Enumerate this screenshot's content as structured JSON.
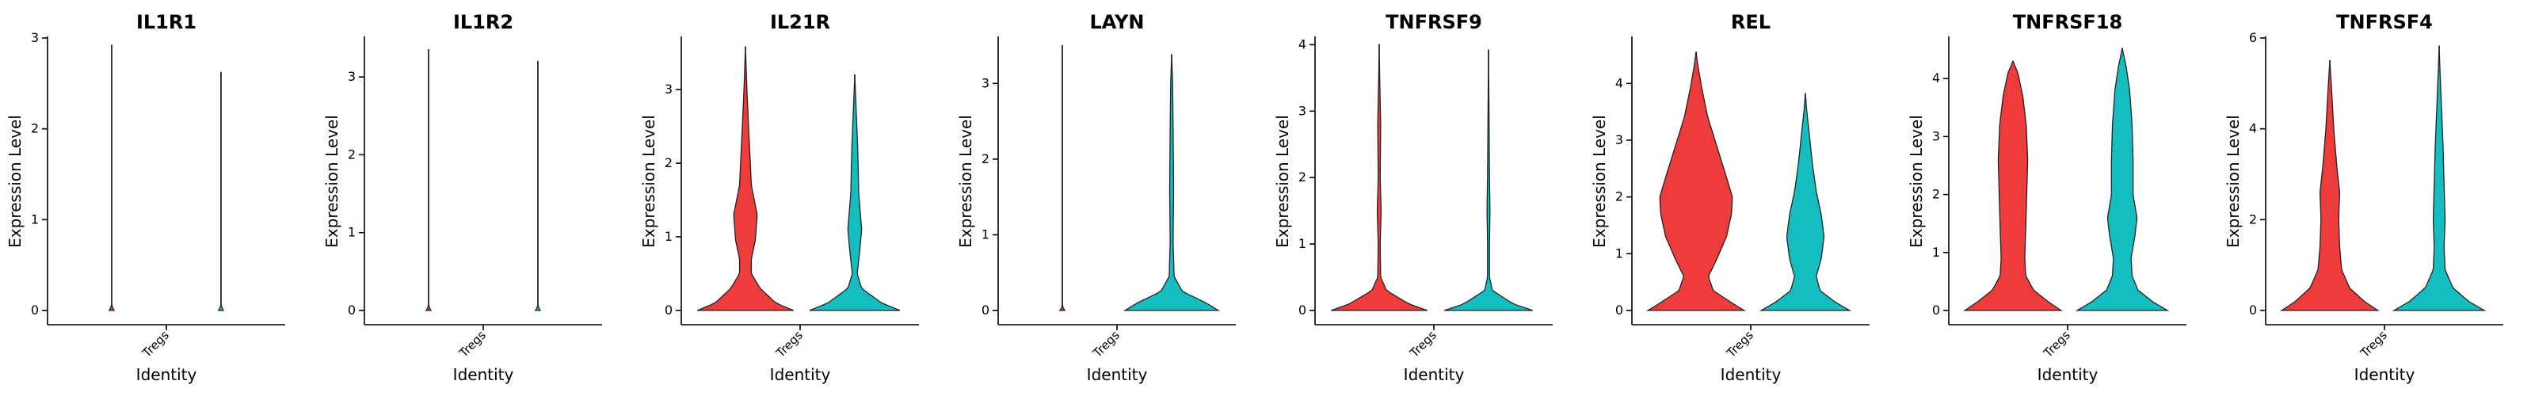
{
  "colors": {
    "group1": "#EE3B3B",
    "group2": "#14BDBF"
  },
  "chart_data": [
    {
      "type": "violin",
      "title": "IL1R1",
      "xlabel": "Identity",
      "ylabel": "Expression Level",
      "categories": [
        "Tregs"
      ],
      "ylim": [
        0,
        3
      ],
      "yticks": [
        0,
        1,
        2,
        3
      ],
      "violins": [
        {
          "color": "group1",
          "max": 2.92,
          "profile": [
            [
              0,
              0.05
            ],
            [
              0.05,
              0.004
            ],
            [
              0.4,
              0.003
            ],
            [
              1.5,
              0.003
            ],
            [
              2.92,
              0
            ]
          ]
        },
        {
          "color": "group2",
          "max": 2.62,
          "profile": [
            [
              0,
              0.05
            ],
            [
              0.05,
              0.004
            ],
            [
              0.4,
              0.003
            ],
            [
              1.5,
              0.003
            ],
            [
              2.62,
              0
            ]
          ]
        }
      ]
    },
    {
      "type": "violin",
      "title": "IL1R2",
      "xlabel": "Identity",
      "ylabel": "Expression Level",
      "categories": [
        "Tregs"
      ],
      "ylim": [
        0,
        3.5
      ],
      "yticks": [
        0,
        1,
        2,
        3
      ],
      "violins": [
        {
          "color": "group1",
          "max": 3.35,
          "profile": [
            [
              0,
              0.05
            ],
            [
              0.05,
              0.004
            ],
            [
              0.4,
              0.003
            ],
            [
              1.5,
              0.003
            ],
            [
              3.35,
              0
            ]
          ]
        },
        {
          "color": "group2",
          "max": 3.2,
          "profile": [
            [
              0,
              0.05
            ],
            [
              0.05,
              0.004
            ],
            [
              0.4,
              0.003
            ],
            [
              1.5,
              0.003
            ],
            [
              3.2,
              0
            ]
          ]
        }
      ]
    },
    {
      "type": "violin",
      "title": "IL21R",
      "xlabel": "Identity",
      "ylabel": "Expression Level",
      "categories": [
        "Tregs"
      ],
      "ylim": [
        0,
        3.7
      ],
      "yticks": [
        0,
        1,
        2,
        3
      ],
      "violins": [
        {
          "color": "group1",
          "max": 3.58,
          "profile": [
            [
              0,
              0.98
            ],
            [
              0.1,
              0.62
            ],
            [
              0.3,
              0.3
            ],
            [
              0.5,
              0.12
            ],
            [
              0.7,
              0.12
            ],
            [
              0.95,
              0.2
            ],
            [
              1.3,
              0.24
            ],
            [
              1.7,
              0.12
            ],
            [
              2.0,
              0.1
            ],
            [
              2.4,
              0.07
            ],
            [
              3.0,
              0.03
            ],
            [
              3.58,
              0
            ]
          ]
        },
        {
          "color": "group2",
          "max": 3.2,
          "profile": [
            [
              0,
              0.92
            ],
            [
              0.1,
              0.55
            ],
            [
              0.3,
              0.14
            ],
            [
              0.5,
              0.05
            ],
            [
              0.8,
              0.1
            ],
            [
              1.1,
              0.14
            ],
            [
              1.6,
              0.08
            ],
            [
              2.2,
              0.06
            ],
            [
              2.7,
              0.03
            ],
            [
              3.2,
              0
            ]
          ]
        }
      ]
    },
    {
      "type": "violin",
      "title": "LAYN",
      "xlabel": "Identity",
      "ylabel": "Expression Level",
      "categories": [
        "Tregs"
      ],
      "ylim": [
        0,
        3.6
      ],
      "yticks": [
        0,
        1,
        2,
        3
      ],
      "violins": [
        {
          "color": "group1",
          "max": 3.5,
          "profile": [
            [
              0,
              0.05
            ],
            [
              0.05,
              0.004
            ],
            [
              0.5,
              0.003
            ],
            [
              2.0,
              0.003
            ],
            [
              3.5,
              0
            ]
          ]
        },
        {
          "color": "group2",
          "max": 3.38,
          "profile": [
            [
              0,
              0.95
            ],
            [
              0.1,
              0.7
            ],
            [
              0.25,
              0.22
            ],
            [
              0.45,
              0.05
            ],
            [
              0.9,
              0.03
            ],
            [
              1.6,
              0.04
            ],
            [
              2.4,
              0.03
            ],
            [
              3.0,
              0.02
            ],
            [
              3.38,
              0
            ]
          ]
        }
      ]
    },
    {
      "type": "violin",
      "title": "TNFRSF9",
      "xlabel": "Identity",
      "ylabel": "Expression Level",
      "categories": [
        "Tregs"
      ],
      "ylim": [
        0,
        4.1
      ],
      "yticks": [
        0,
        1,
        2,
        3,
        4
      ],
      "violins": [
        {
          "color": "group1",
          "max": 4.0,
          "profile": [
            [
              0,
              0.98
            ],
            [
              0.1,
              0.6
            ],
            [
              0.3,
              0.15
            ],
            [
              0.5,
              0.03
            ],
            [
              1.0,
              0.02
            ],
            [
              1.5,
              0.04
            ],
            [
              2.0,
              0.02
            ],
            [
              2.8,
              0.03
            ],
            [
              3.5,
              0.01
            ],
            [
              4.0,
              0
            ]
          ]
        },
        {
          "color": "group2",
          "max": 3.92,
          "profile": [
            [
              0,
              0.9
            ],
            [
              0.1,
              0.5
            ],
            [
              0.3,
              0.08
            ],
            [
              0.5,
              0.02
            ],
            [
              1.0,
              0.02
            ],
            [
              1.5,
              0.03
            ],
            [
              2.0,
              0.02
            ],
            [
              3.0,
              0.01
            ],
            [
              3.92,
              0
            ]
          ]
        }
      ]
    },
    {
      "type": "violin",
      "title": "REL",
      "xlabel": "Identity",
      "ylabel": "Expression Level",
      "categories": [
        "Tregs"
      ],
      "ylim": [
        0,
        4.8
      ],
      "yticks": [
        0,
        1,
        2,
        3,
        4
      ],
      "violins": [
        {
          "color": "group1",
          "max": 4.55,
          "profile": [
            [
              0,
              0.98
            ],
            [
              0.15,
              0.7
            ],
            [
              0.35,
              0.35
            ],
            [
              0.6,
              0.25
            ],
            [
              0.9,
              0.42
            ],
            [
              1.3,
              0.62
            ],
            [
              1.7,
              0.72
            ],
            [
              2.0,
              0.74
            ],
            [
              2.4,
              0.6
            ],
            [
              2.9,
              0.42
            ],
            [
              3.4,
              0.24
            ],
            [
              3.9,
              0.12
            ],
            [
              4.3,
              0.04
            ],
            [
              4.55,
              0
            ]
          ]
        },
        {
          "color": "group2",
          "max": 3.82,
          "profile": [
            [
              0,
              0.9
            ],
            [
              0.15,
              0.6
            ],
            [
              0.35,
              0.3
            ],
            [
              0.6,
              0.22
            ],
            [
              0.9,
              0.32
            ],
            [
              1.3,
              0.38
            ],
            [
              1.7,
              0.32
            ],
            [
              2.1,
              0.22
            ],
            [
              2.6,
              0.14
            ],
            [
              3.1,
              0.08
            ],
            [
              3.5,
              0.03
            ],
            [
              3.82,
              0
            ]
          ]
        }
      ]
    },
    {
      "type": "violin",
      "title": "TNFRSF18",
      "xlabel": "Identity",
      "ylabel": "Expression Level",
      "categories": [
        "Tregs"
      ],
      "ylim": [
        0,
        4.7
      ],
      "yticks": [
        0,
        1,
        2,
        3,
        4
      ],
      "violins": [
        {
          "color": "group1",
          "max": 4.3,
          "profile": [
            [
              0,
              0.98
            ],
            [
              0.15,
              0.72
            ],
            [
              0.35,
              0.42
            ],
            [
              0.6,
              0.26
            ],
            [
              0.9,
              0.24
            ],
            [
              1.4,
              0.26
            ],
            [
              2.0,
              0.28
            ],
            [
              2.6,
              0.3
            ],
            [
              3.2,
              0.27
            ],
            [
              3.7,
              0.2
            ],
            [
              4.1,
              0.1
            ],
            [
              4.3,
              0
            ]
          ]
        },
        {
          "color": "group2",
          "max": 4.52,
          "profile": [
            [
              0,
              0.92
            ],
            [
              0.15,
              0.62
            ],
            [
              0.35,
              0.32
            ],
            [
              0.6,
              0.2
            ],
            [
              0.9,
              0.18
            ],
            [
              1.3,
              0.26
            ],
            [
              1.6,
              0.3
            ],
            [
              2.0,
              0.22
            ],
            [
              2.6,
              0.22
            ],
            [
              3.2,
              0.2
            ],
            [
              3.8,
              0.15
            ],
            [
              4.2,
              0.08
            ],
            [
              4.52,
              0
            ]
          ]
        }
      ]
    },
    {
      "type": "violin",
      "title": "TNFRSF4",
      "xlabel": "Identity",
      "ylabel": "Expression Level",
      "categories": [
        "Tregs"
      ],
      "ylim": [
        0,
        6.0
      ],
      "yticks": [
        0,
        2,
        4,
        6
      ],
      "violins": [
        {
          "color": "group1",
          "max": 5.5,
          "profile": [
            [
              0,
              0.98
            ],
            [
              0.2,
              0.7
            ],
            [
              0.5,
              0.4
            ],
            [
              0.9,
              0.24
            ],
            [
              1.4,
              0.2
            ],
            [
              2.0,
              0.18
            ],
            [
              2.6,
              0.2
            ],
            [
              3.2,
              0.14
            ],
            [
              4.0,
              0.08
            ],
            [
              4.8,
              0.04
            ],
            [
              5.5,
              0
            ]
          ]
        },
        {
          "color": "group2",
          "max": 5.82,
          "profile": [
            [
              0,
              0.92
            ],
            [
              0.2,
              0.6
            ],
            [
              0.5,
              0.28
            ],
            [
              0.9,
              0.12
            ],
            [
              1.4,
              0.1
            ],
            [
              2.0,
              0.12
            ],
            [
              2.8,
              0.1
            ],
            [
              3.6,
              0.08
            ],
            [
              4.4,
              0.05
            ],
            [
              5.2,
              0.02
            ],
            [
              5.82,
              0
            ]
          ]
        }
      ]
    }
  ]
}
